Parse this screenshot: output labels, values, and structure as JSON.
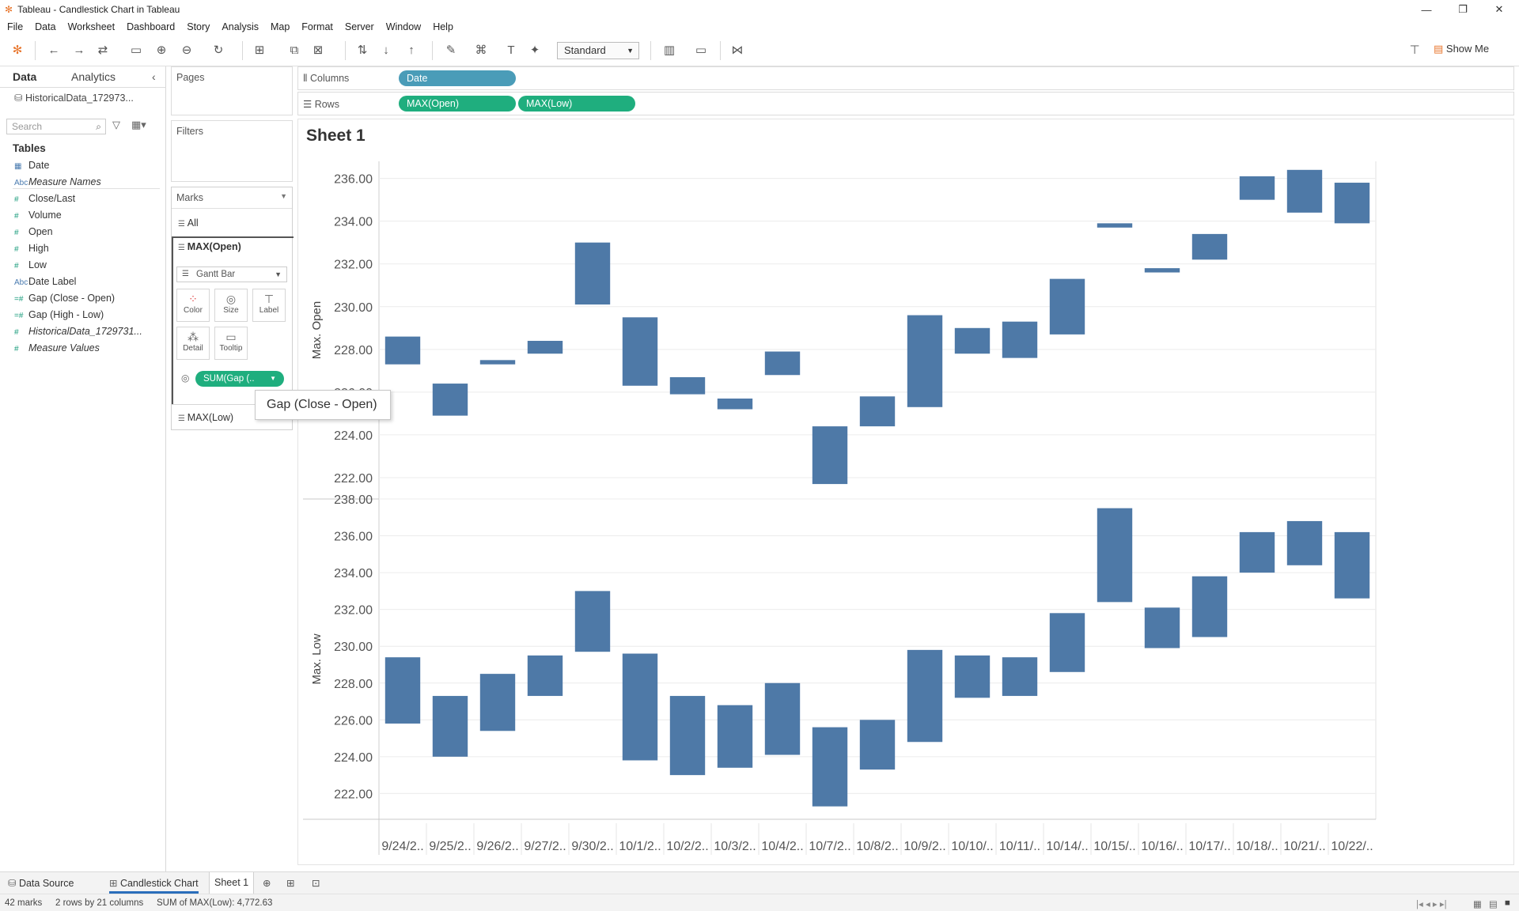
{
  "window": {
    "title": "Tableau - Candlestick Chart in Tableau"
  },
  "menu": [
    "File",
    "Data",
    "Worksheet",
    "Dashboard",
    "Story",
    "Analysis",
    "Map",
    "Format",
    "Server",
    "Window",
    "Help"
  ],
  "toolbar": {
    "fit_select": "Standard",
    "show_me": "Show Me"
  },
  "datapane": {
    "tab_data": "Data",
    "tab_analytics": "Analytics",
    "datasource": "HistoricalData_172973...",
    "search_placeholder": "Search",
    "tables_header": "Tables",
    "fields": [
      {
        "label": "Date",
        "type": "dimension",
        "icon": "calendar-icon"
      },
      {
        "label": "Measure Names",
        "type": "dimension",
        "icon": "abc-icon",
        "italic": true
      },
      {
        "label": "Close/Last",
        "type": "measure",
        "icon": "hash-icon"
      },
      {
        "label": "Volume",
        "type": "measure",
        "icon": "hash-icon"
      },
      {
        "label": "Open",
        "type": "measure",
        "icon": "hash-icon"
      },
      {
        "label": "High",
        "type": "measure",
        "icon": "hash-icon"
      },
      {
        "label": "Low",
        "type": "measure",
        "icon": "hash-icon"
      },
      {
        "label": "Date Label",
        "type": "dimension",
        "icon": "abc-icon"
      },
      {
        "label": "Gap (Close - Open)",
        "type": "measure",
        "icon": "calc-hash-icon"
      },
      {
        "label": "Gap (High - Low)",
        "type": "measure",
        "icon": "calc-hash-icon"
      },
      {
        "label": "HistoricalData_1729731...",
        "type": "measure",
        "icon": "hash-icon",
        "italic": true
      },
      {
        "label": "Measure Values",
        "type": "measure",
        "icon": "hash-icon",
        "italic": true
      }
    ]
  },
  "shelves": {
    "pages": "Pages",
    "filters": "Filters",
    "columns_label": "Columns",
    "rows_label": "Rows",
    "columns_pills": [
      "Date"
    ],
    "rows_pills": [
      "MAX(Open)",
      "MAX(Low)"
    ]
  },
  "marks": {
    "header": "Marks",
    "all": "All",
    "card1": "MAX(Open)",
    "mark_type": "Gantt Bar",
    "buttons": [
      "Color",
      "Size",
      "Label",
      "Detail",
      "Tooltip"
    ],
    "size_pill": "SUM(Gap (..",
    "card2": "MAX(Low)"
  },
  "tooltip_text": "Gap (Close - Open)",
  "sheet": {
    "title": "Sheet 1"
  },
  "chart_data": [
    {
      "type": "bar",
      "ylabel": "Max. Open",
      "ylim": [
        221,
        236.8
      ],
      "yticks": [
        "222.00",
        "224.00",
        "226.00",
        "228.00",
        "230.00",
        "232.00",
        "234.00",
        "236.00"
      ],
      "bar_color": "#4e79a7",
      "categories": [
        "9/24/2..",
        "9/25/2..",
        "9/26/2..",
        "9/27/2..",
        "9/30/2..",
        "10/1/2..",
        "10/2/2..",
        "10/3/2..",
        "10/4/2..",
        "10/7/2..",
        "10/8/2..",
        "10/9/2..",
        "10/10/..",
        "10/11/..",
        "10/14/..",
        "10/15/..",
        "10/16/..",
        "10/17/..",
        "10/18/..",
        "10/21/..",
        "10/22/.."
      ],
      "bars": [
        {
          "open": 228.6,
          "close": 227.3
        },
        {
          "open": 226.4,
          "close": 224.9
        },
        {
          "open": 227.5,
          "close": 227.3
        },
        {
          "open": 228.4,
          "close": 227.8
        },
        {
          "open": 233.0,
          "close": 230.1
        },
        {
          "open": 229.5,
          "close": 226.3
        },
        {
          "open": 226.7,
          "close": 225.9
        },
        {
          "open": 225.7,
          "close": 225.2
        },
        {
          "open": 227.9,
          "close": 226.8
        },
        {
          "open": 224.4,
          "close": 221.7
        },
        {
          "open": 225.8,
          "close": 224.4
        },
        {
          "open": 229.6,
          "close": 225.3
        },
        {
          "open": 229.0,
          "close": 227.8
        },
        {
          "open": 229.3,
          "close": 227.6
        },
        {
          "open": 231.3,
          "close": 228.7
        },
        {
          "open": 233.9,
          "close": 233.7
        },
        {
          "open": 231.8,
          "close": 231.6
        },
        {
          "open": 233.4,
          "close": 232.2
        },
        {
          "open": 236.1,
          "close": 235.0
        },
        {
          "open": 236.4,
          "close": 234.4
        },
        {
          "open": 235.8,
          "close": 233.9
        }
      ]
    },
    {
      "type": "bar",
      "ylabel": "Max. Low",
      "ylim": [
        220.6,
        238.0
      ],
      "yticks": [
        "222.00",
        "224.00",
        "226.00",
        "228.00",
        "230.00",
        "232.00",
        "234.00",
        "236.00",
        "238.00"
      ],
      "bar_color": "#4e79a7",
      "bars": [
        {
          "high": 229.4,
          "low": 225.8
        },
        {
          "high": 227.3,
          "low": 224.0
        },
        {
          "high": 228.5,
          "low": 225.4
        },
        {
          "high": 229.5,
          "low": 227.3
        },
        {
          "high": 233.0,
          "low": 229.7
        },
        {
          "high": 229.6,
          "low": 223.8
        },
        {
          "high": 227.3,
          "low": 223.0
        },
        {
          "high": 226.8,
          "low": 223.4
        },
        {
          "high": 228.0,
          "low": 224.1
        },
        {
          "high": 225.6,
          "low": 221.3
        },
        {
          "high": 226.0,
          "low": 223.3
        },
        {
          "high": 229.8,
          "low": 224.8
        },
        {
          "high": 229.5,
          "low": 227.2
        },
        {
          "high": 229.4,
          "low": 227.3
        },
        {
          "high": 231.8,
          "low": 228.6
        },
        {
          "high": 237.5,
          "low": 232.4
        },
        {
          "high": 232.1,
          "low": 229.9
        },
        {
          "high": 233.8,
          "low": 230.5
        },
        {
          "high": 236.2,
          "low": 234.0
        },
        {
          "high": 236.8,
          "low": 234.4
        },
        {
          "high": 236.2,
          "low": 232.6
        }
      ]
    }
  ],
  "bottom_tabs": [
    "Data Source",
    "Candlestick Chart",
    "Sheet 1"
  ],
  "status": {
    "marks": "42 marks",
    "rows_cols": "2 rows by 21 columns",
    "sum": "SUM of MAX(Low): 4,772.63"
  }
}
